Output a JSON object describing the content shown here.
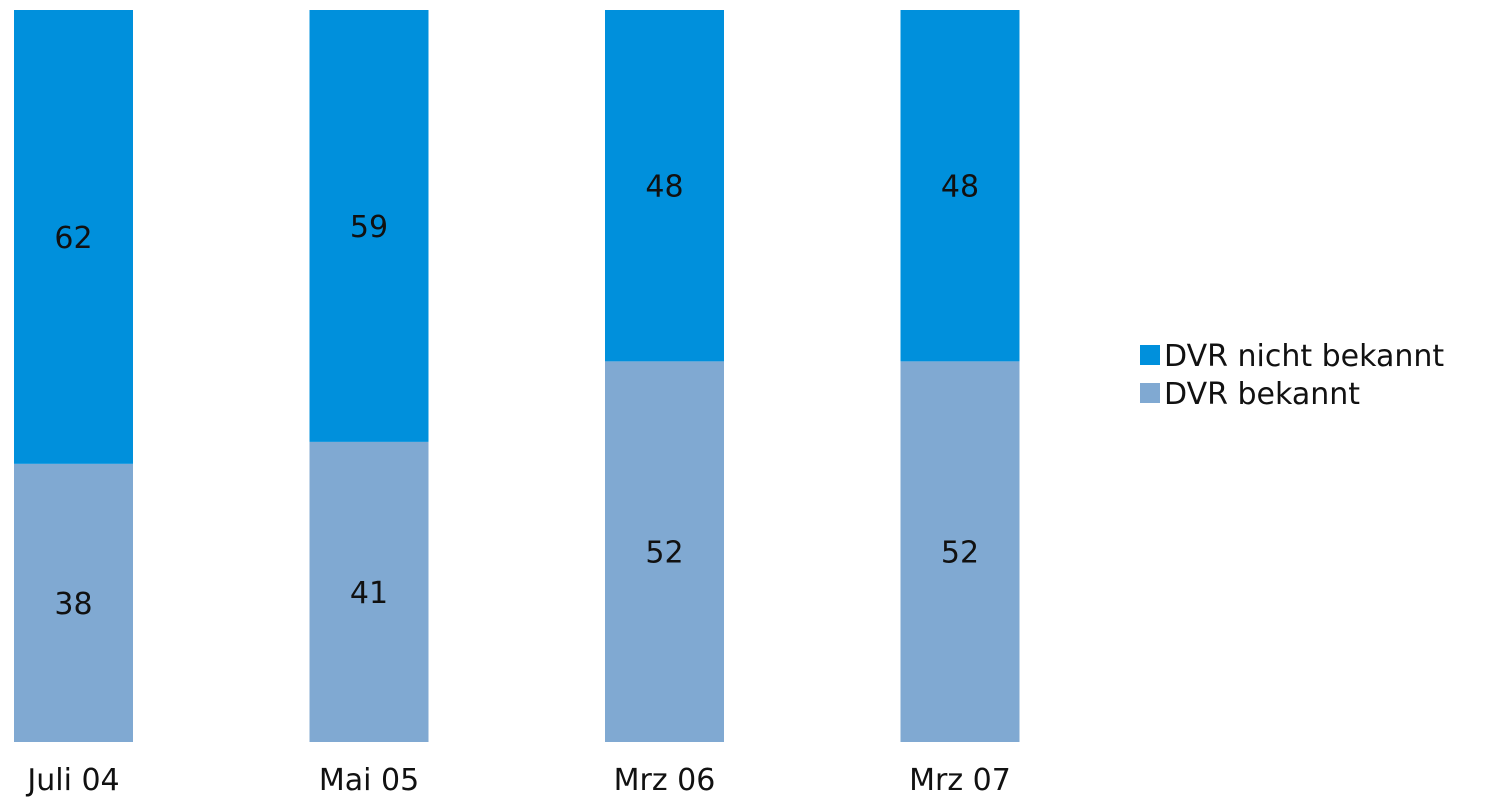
{
  "chart_data": {
    "type": "bar",
    "stacked": true,
    "categories": [
      "Juli 04",
      "Mai 05",
      "Mrz 06",
      "Mrz 07"
    ],
    "series": [
      {
        "name": "DVR bekannt",
        "values": [
          38,
          41,
          52,
          52
        ],
        "color": "#80a9d2"
      },
      {
        "name": "DVR nicht bekannt",
        "values": [
          62,
          59,
          48,
          48
        ],
        "color": "#0090dc"
      }
    ],
    "ylim": [
      0,
      100
    ],
    "grid": false,
    "legend": {
      "placement": "right",
      "order": [
        "DVR nicht bekannt",
        "DVR bekannt"
      ]
    }
  }
}
